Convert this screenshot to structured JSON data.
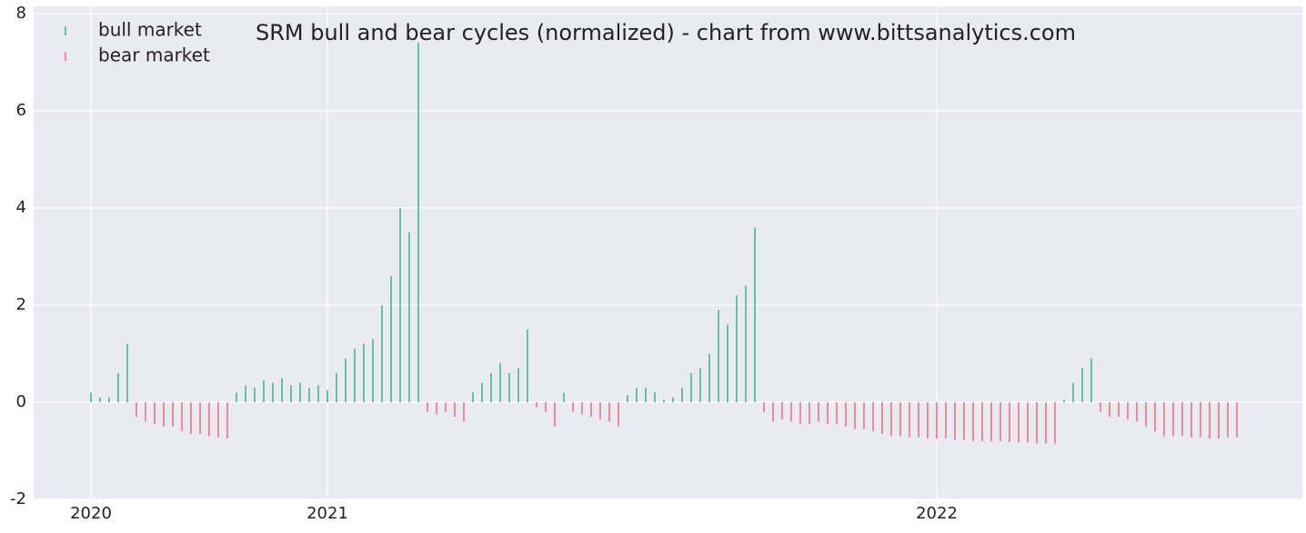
{
  "chart_data": {
    "type": "bar",
    "title": "SRM bull and bear cycles (normalized)  - chart from www.bittsanalytics.com",
    "categories": [
      "2020",
      null,
      null,
      null,
      null,
      null,
      null,
      null,
      null,
      null,
      null,
      null,
      null,
      null,
      null,
      null,
      null,
      null,
      null,
      null,
      null,
      null,
      null,
      null,
      null,
      null,
      "2021",
      null,
      null,
      null,
      null,
      null,
      null,
      null,
      null,
      null,
      null,
      null,
      null,
      null,
      null,
      null,
      null,
      null,
      null,
      null,
      null,
      null,
      null,
      null,
      null,
      null,
      null,
      null,
      null,
      null,
      null,
      null,
      null,
      null,
      null,
      null,
      null,
      null,
      null,
      null,
      null,
      null,
      null,
      null,
      null,
      null,
      null,
      null,
      null,
      null,
      null,
      null,
      null,
      null,
      null,
      null,
      null,
      null,
      null,
      null,
      null,
      null,
      null,
      null,
      null,
      null,
      null,
      "2022",
      null,
      null,
      null,
      null,
      null,
      null,
      null,
      null,
      null,
      null,
      null,
      null,
      null,
      null,
      null,
      null,
      null,
      null,
      null,
      null,
      null,
      null,
      null,
      null,
      null,
      null,
      null,
      null,
      null,
      null,
      null,
      null,
      null
    ],
    "series": [
      {
        "name": "bull market",
        "color": "#66c2a5",
        "values": [
          0.2,
          0.1,
          0.1,
          0.6,
          1.2,
          null,
          null,
          null,
          null,
          null,
          null,
          null,
          null,
          null,
          null,
          null,
          0.2,
          0.35,
          0.3,
          0.45,
          0.4,
          0.5,
          0.35,
          0.4,
          0.3,
          0.35,
          0.25,
          0.6,
          0.9,
          1.1,
          1.2,
          1.3,
          2.0,
          2.6,
          4.0,
          3.5,
          7.4,
          null,
          null,
          null,
          null,
          null,
          0.2,
          0.4,
          0.6,
          0.8,
          0.6,
          0.7,
          1.5,
          null,
          null,
          null,
          0.2,
          null,
          null,
          null,
          null,
          null,
          null,
          0.15,
          0.3,
          0.3,
          0.2,
          0.05,
          0.1,
          0.3,
          0.6,
          0.7,
          1.0,
          1.9,
          1.6,
          2.2,
          2.4,
          3.6,
          null,
          null,
          null,
          null,
          null,
          null,
          null,
          null,
          null,
          null,
          null,
          null,
          null,
          null,
          null,
          null,
          null,
          null,
          null,
          null,
          null,
          null,
          null,
          null,
          null,
          null,
          null,
          null,
          null,
          null,
          null,
          null,
          null,
          0.05,
          0.4,
          0.7,
          0.9,
          null,
          null,
          null,
          null,
          null,
          null,
          null,
          null,
          null,
          null,
          null,
          null,
          null,
          null,
          null,
          null
        ]
      },
      {
        "name": "bear market",
        "color": "#f0899a",
        "values": [
          null,
          null,
          null,
          null,
          null,
          -0.3,
          -0.4,
          -0.45,
          -0.5,
          -0.5,
          -0.6,
          -0.65,
          -0.65,
          -0.7,
          -0.72,
          -0.75,
          null,
          null,
          null,
          null,
          null,
          null,
          null,
          null,
          null,
          null,
          null,
          null,
          null,
          null,
          null,
          null,
          null,
          null,
          null,
          null,
          null,
          -0.2,
          -0.25,
          -0.2,
          -0.3,
          -0.4,
          null,
          null,
          null,
          null,
          null,
          null,
          null,
          -0.1,
          -0.2,
          -0.5,
          null,
          -0.2,
          -0.25,
          -0.3,
          -0.35,
          -0.4,
          -0.5,
          null,
          null,
          null,
          null,
          null,
          null,
          null,
          null,
          null,
          null,
          null,
          null,
          null,
          null,
          null,
          -0.2,
          -0.4,
          -0.35,
          -0.4,
          -0.45,
          -0.45,
          -0.4,
          -0.45,
          -0.45,
          -0.5,
          -0.55,
          -0.55,
          -0.6,
          -0.65,
          -0.7,
          -0.7,
          -0.72,
          -0.72,
          -0.75,
          -0.75,
          -0.75,
          -0.78,
          -0.78,
          -0.8,
          -0.8,
          -0.8,
          -0.8,
          -0.82,
          -0.83,
          -0.83,
          -0.85,
          -0.85,
          -0.85,
          null,
          null,
          null,
          null,
          -0.2,
          -0.3,
          -0.3,
          -0.35,
          -0.4,
          -0.5,
          -0.6,
          -0.7,
          -0.7,
          -0.7,
          -0.72,
          -0.72,
          -0.75,
          -0.75,
          -0.72,
          -0.72
        ]
      }
    ],
    "ylim": [
      -2,
      8.15
    ],
    "yticks": [
      -2,
      0,
      2,
      4,
      6,
      8
    ],
    "grid": true,
    "legend": "upper left"
  }
}
